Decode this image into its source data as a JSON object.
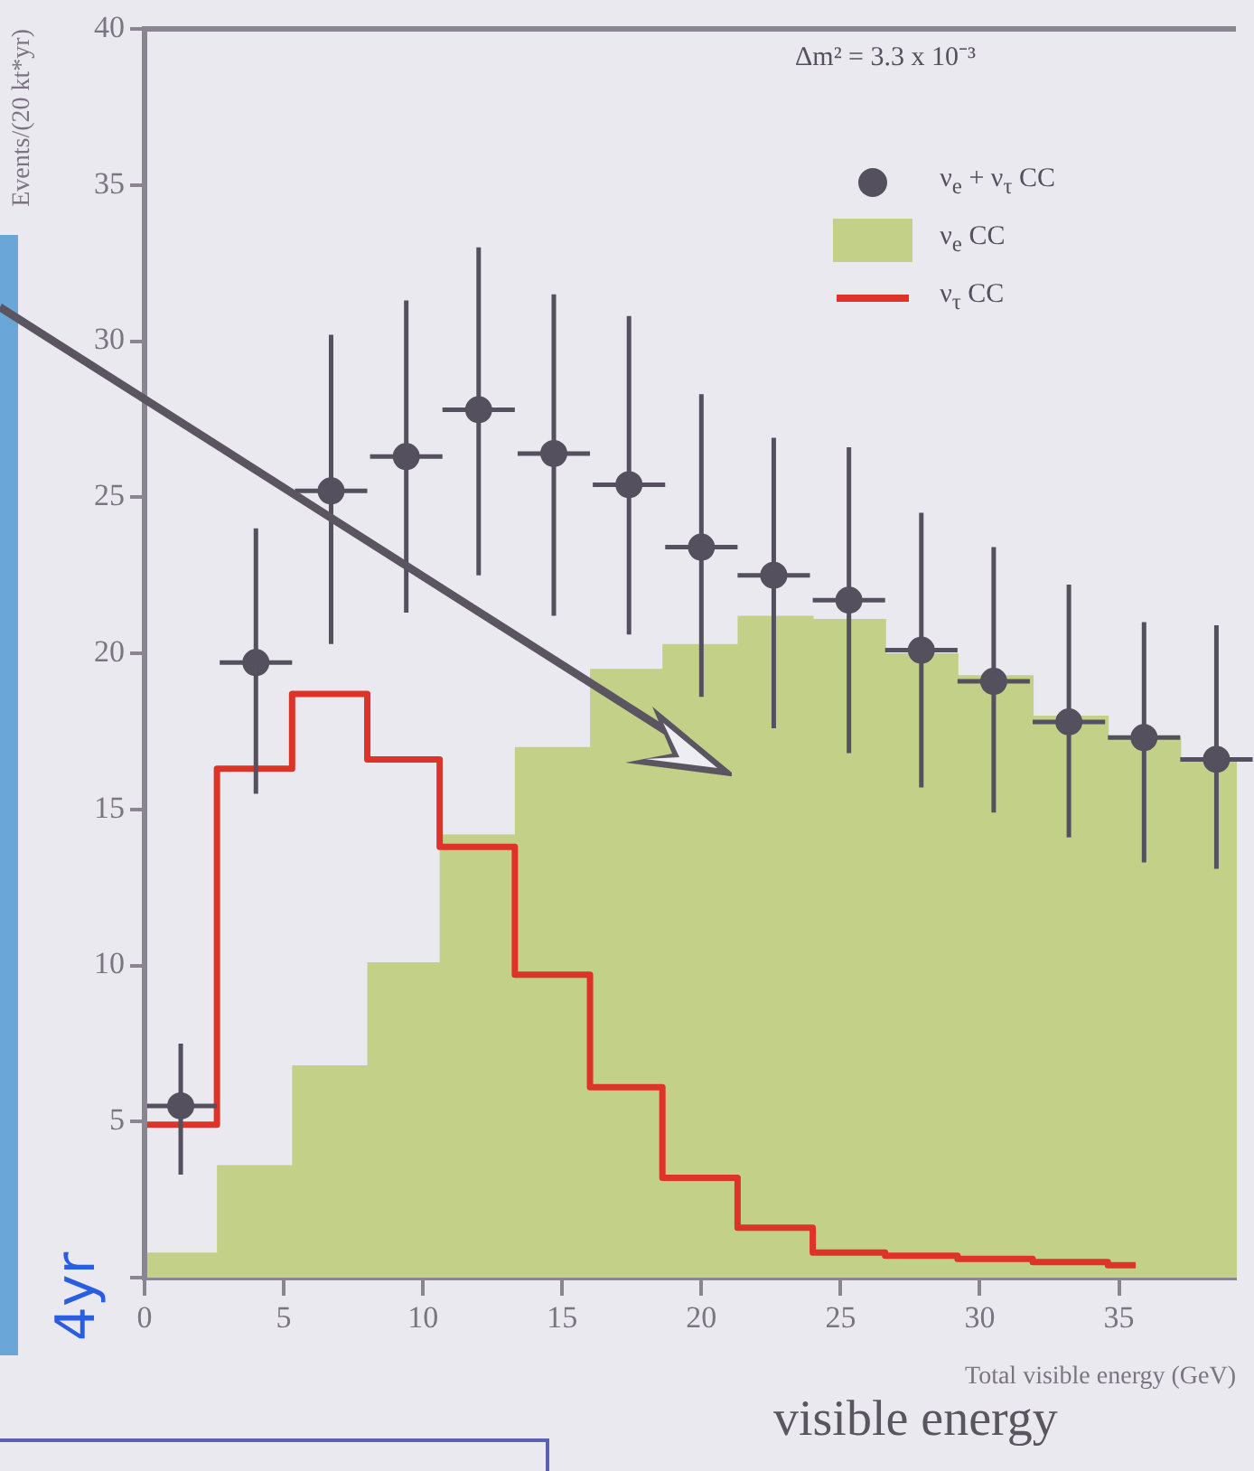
{
  "chart_data": {
    "type": "histogram",
    "ylabel": "Events/(20 kt*yr)",
    "xlabel": "Total visible energy (GeV)",
    "annotations": [
      "Δm² = 3.3 x 10⁻³",
      "visible energy",
      "4yr"
    ],
    "xlim": [
      0,
      39.2
    ],
    "xticks": [
      0,
      5,
      10,
      15,
      20,
      25,
      30,
      35
    ],
    "ylim": [
      0,
      40
    ],
    "yticks": [
      {
        "value": 0,
        "label": null
      },
      5,
      10,
      15,
      20,
      25,
      30,
      35,
      40
    ],
    "grid": false,
    "legend": "top right",
    "bins": [
      0,
      2.6,
      5.3,
      8,
      10.6,
      13.3,
      16,
      18.6,
      21.3,
      24,
      26.6,
      29.2,
      31.9,
      34.6,
      37.2,
      39.2
    ],
    "series": [
      {
        "name": "ν$_{e}$ + ν$_{τ}$ CC",
        "type": "scatter",
        "color": "#55505e",
        "marker": "circle",
        "x": [
          1.3,
          4.0,
          6.7,
          9.4,
          12.0,
          14.7,
          17.4,
          20.0,
          22.6,
          25.3,
          27.9,
          30.5,
          33.2,
          35.9,
          38.5
        ],
        "values": [
          5.5,
          19.7,
          25.2,
          26.3,
          27.8,
          26.4,
          25.4,
          23.4,
          22.5,
          21.7,
          20.1,
          19.1,
          17.8,
          17.3,
          16.6
        ],
        "errors": [
          [
            3.3,
            7.5
          ],
          [
            15.5,
            24.0
          ],
          [
            20.3,
            30.2
          ],
          [
            21.3,
            31.3
          ],
          [
            22.5,
            33.0
          ],
          [
            21.2,
            31.5
          ],
          [
            20.6,
            30.8
          ],
          [
            18.6,
            28.3
          ],
          [
            17.6,
            26.9
          ],
          [
            16.8,
            26.6
          ],
          [
            15.7,
            24.5
          ],
          [
            14.9,
            23.4
          ],
          [
            14.1,
            22.2
          ],
          [
            13.3,
            21.0
          ],
          [
            13.1,
            20.9
          ]
        ],
        "xerrors": [
          1.3,
          1.3,
          1.3,
          1.3,
          1.3,
          1.3,
          1.3,
          1.3,
          1.3,
          1.3,
          1.3,
          1.3,
          1.3,
          1.3,
          1.3
        ]
      },
      {
        "name": "ν$_{e}$ CC",
        "type": "histogram",
        "color": "#c3d188",
        "values": [
          0.8,
          3.6,
          6.8,
          10.1,
          14.2,
          17.0,
          19.5,
          20.3,
          21.2,
          21.1,
          20.0,
          19.3,
          18.0,
          17.3,
          16.6
        ]
      },
      {
        "name": "ν$_{τ}$ CC",
        "type": "step",
        "color": "#de3328",
        "x": [
          0,
          2.6,
          5.3,
          8,
          10.6,
          13.3,
          16,
          18.6,
          21.3,
          24,
          26.6,
          29.2,
          31.9,
          34.6,
          35.6
        ],
        "values": [
          4.9,
          16.3,
          18.7,
          16.6,
          13.8,
          9.7,
          6.1,
          3.2,
          1.6,
          0.8,
          0.7,
          0.6,
          0.5,
          0.4,
          0.4
        ]
      }
    ]
  }
}
